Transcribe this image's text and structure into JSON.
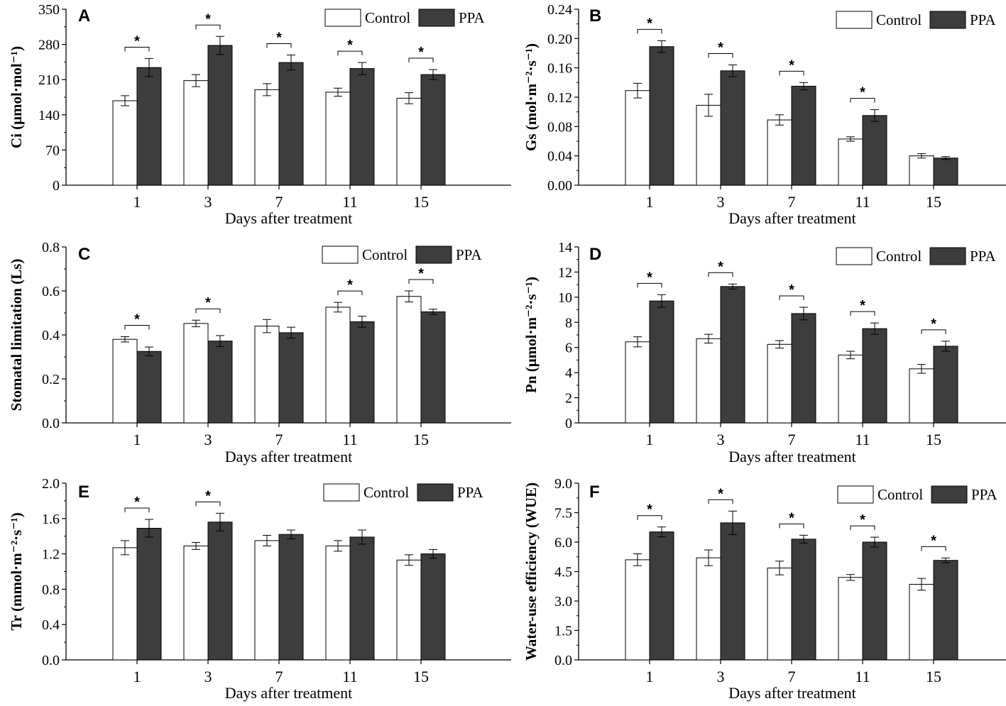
{
  "figure": {
    "legend": {
      "control_label": "Control",
      "treatment_label": "PPA"
    },
    "colors": {
      "control_fill": "#ffffff",
      "treatment_fill": "#3d3d3d",
      "axis": "#000000"
    }
  },
  "chart_data": [
    {
      "panel": "A",
      "type": "bar",
      "title": "",
      "xlabel": "Days after treatment",
      "ylabel": "Ci (μmol·mol⁻¹)",
      "categories": [
        "1",
        "3",
        "7",
        "11",
        "15"
      ],
      "yticks": [
        "0",
        "70",
        "140",
        "210",
        "280",
        "350"
      ],
      "ylim": [
        0,
        350
      ],
      "series": [
        {
          "name": "Control",
          "values": [
            168,
            208,
            190,
            185,
            173
          ],
          "errors": [
            10,
            12,
            12,
            8,
            11
          ]
        },
        {
          "name": "PPA",
          "values": [
            234,
            278,
            244,
            232,
            220
          ],
          "errors": [
            18,
            18,
            15,
            12,
            10
          ]
        }
      ],
      "significant": [
        true,
        true,
        true,
        true,
        true
      ],
      "significance_marker": "*"
    },
    {
      "panel": "B",
      "type": "bar",
      "title": "",
      "xlabel": "Days after treatment",
      "ylabel": "Gs (mol·m⁻²·s⁻¹)",
      "categories": [
        "1",
        "3",
        "7",
        "11",
        "15"
      ],
      "yticks": [
        "0.00",
        "0.04",
        "0.08",
        "0.12",
        "0.16",
        "0.20",
        "0.24"
      ],
      "ylim": [
        0,
        0.24
      ],
      "series": [
        {
          "name": "Control",
          "values": [
            0.129,
            0.109,
            0.089,
            0.063,
            0.04
          ],
          "errors": [
            0.01,
            0.015,
            0.007,
            0.003,
            0.003
          ]
        },
        {
          "name": "PPA",
          "values": [
            0.189,
            0.156,
            0.135,
            0.095,
            0.037
          ],
          "errors": [
            0.008,
            0.008,
            0.005,
            0.008,
            0.002
          ]
        }
      ],
      "significant": [
        true,
        true,
        true,
        true,
        false
      ],
      "significance_marker": "*"
    },
    {
      "panel": "C",
      "type": "bar",
      "title": "",
      "xlabel": "Days after treatment",
      "ylabel": "Stomatal limitation (Ls)",
      "categories": [
        "1",
        "3",
        "7",
        "11",
        "15"
      ],
      "yticks": [
        "0.0",
        "0.2",
        "0.4",
        "0.6",
        "0.8"
      ],
      "ylim": [
        0,
        0.8
      ],
      "series": [
        {
          "name": "Control",
          "values": [
            0.38,
            0.452,
            0.44,
            0.526,
            0.575
          ],
          "errors": [
            0.012,
            0.015,
            0.03,
            0.022,
            0.025
          ]
        },
        {
          "name": "PPA",
          "values": [
            0.325,
            0.372,
            0.41,
            0.46,
            0.505
          ],
          "errors": [
            0.02,
            0.025,
            0.025,
            0.025,
            0.012
          ]
        }
      ],
      "significant": [
        true,
        true,
        false,
        true,
        true
      ],
      "significance_marker": "*"
    },
    {
      "panel": "D",
      "type": "bar",
      "title": "",
      "xlabel": "Days after treatment",
      "ylabel": "Pn (μmol·m⁻²·s⁻¹)",
      "categories": [
        "1",
        "3",
        "7",
        "11",
        "15"
      ],
      "yticks": [
        "0",
        "2",
        "4",
        "6",
        "8",
        "10",
        "12",
        "14"
      ],
      "ylim": [
        0,
        14
      ],
      "series": [
        {
          "name": "Control",
          "values": [
            6.45,
            6.7,
            6.25,
            5.4,
            4.3
          ],
          "errors": [
            0.4,
            0.35,
            0.3,
            0.3,
            0.35
          ]
        },
        {
          "name": "PPA",
          "values": [
            9.7,
            10.85,
            8.7,
            7.5,
            6.1
          ],
          "errors": [
            0.5,
            0.2,
            0.5,
            0.45,
            0.4
          ]
        }
      ],
      "significant": [
        true,
        true,
        true,
        true,
        true
      ],
      "significance_marker": "*"
    },
    {
      "panel": "E",
      "type": "bar",
      "title": "",
      "xlabel": "Days after treatment",
      "ylabel": "Tr (mmol·m⁻²·s⁻¹)",
      "categories": [
        "1",
        "3",
        "7",
        "11",
        "15"
      ],
      "yticks": [
        "0.0",
        "0.4",
        "0.8",
        "1.2",
        "1.6",
        "2.0"
      ],
      "ylim": [
        0,
        2.0
      ],
      "series": [
        {
          "name": "Control",
          "values": [
            1.27,
            1.29,
            1.35,
            1.29,
            1.13
          ],
          "errors": [
            0.08,
            0.04,
            0.06,
            0.06,
            0.06
          ]
        },
        {
          "name": "PPA",
          "values": [
            1.49,
            1.56,
            1.42,
            1.39,
            1.2
          ],
          "errors": [
            0.1,
            0.1,
            0.05,
            0.08,
            0.05
          ]
        }
      ],
      "significant": [
        true,
        true,
        false,
        false,
        false
      ],
      "significance_marker": "*"
    },
    {
      "panel": "F",
      "type": "bar",
      "title": "",
      "xlabel": "Days after treatment",
      "ylabel": "Water-use efficiency (WUE)",
      "categories": [
        "1",
        "3",
        "7",
        "11",
        "15"
      ],
      "yticks": [
        "0.0",
        "1.5",
        "3.0",
        "4.5",
        "6.0",
        "7.5",
        "9.0"
      ],
      "ylim": [
        0,
        9.0
      ],
      "series": [
        {
          "name": "Control",
          "values": [
            5.1,
            5.2,
            4.68,
            4.2,
            3.85
          ],
          "errors": [
            0.3,
            0.4,
            0.35,
            0.15,
            0.3
          ]
        },
        {
          "name": "PPA",
          "values": [
            6.52,
            6.98,
            6.15,
            6.0,
            5.07
          ],
          "errors": [
            0.25,
            0.6,
            0.2,
            0.25,
            0.12
          ]
        }
      ],
      "significant": [
        true,
        true,
        true,
        true,
        true
      ],
      "significance_marker": "*"
    }
  ]
}
